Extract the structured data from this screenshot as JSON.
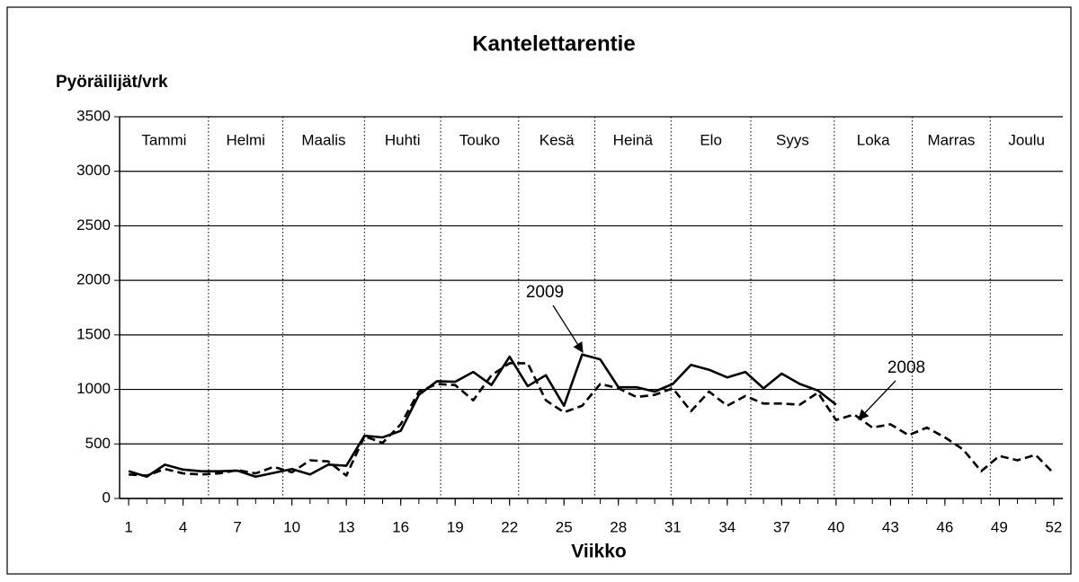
{
  "chart_data": {
    "type": "line",
    "title": "Kantelettarentie",
    "y_label": "Pyöräilijät/vrk",
    "x_label": "Viikko",
    "xlim": [
      0.5,
      52.5
    ],
    "xticks": [
      1,
      4,
      7,
      10,
      13,
      16,
      19,
      22,
      25,
      28,
      31,
      34,
      37,
      40,
      43,
      46,
      49,
      52
    ],
    "ylim": [
      0,
      3500
    ],
    "yticks": [
      0,
      500,
      1000,
      1500,
      2000,
      2500,
      3000,
      3500
    ],
    "grid": true,
    "months": [
      "Tammi",
      "Helmi",
      "Maalis",
      "Huhti",
      "Touko",
      "Kesä",
      "Heinä",
      "Elo",
      "Syys",
      "Loka",
      "Marras",
      "Joulu"
    ],
    "month_boundaries": [
      5.4,
      9.5,
      14,
      18.2,
      22.5,
      26.7,
      30.9,
      35.3,
      39.9,
      44.2,
      48.5
    ],
    "series": [
      {
        "name": "2009",
        "color": "#000000",
        "dash": false,
        "x": [
          1,
          2,
          3,
          4,
          5,
          6,
          7,
          8,
          9,
          10,
          11,
          12,
          13,
          14,
          15,
          16,
          17,
          18,
          19,
          20,
          21,
          22,
          23,
          24,
          25,
          26,
          27,
          28,
          29,
          30,
          31,
          32,
          33,
          34,
          35,
          36,
          37,
          38,
          39,
          40
        ],
        "values": [
          250,
          200,
          310,
          265,
          250,
          250,
          255,
          200,
          235,
          270,
          220,
          310,
          300,
          575,
          560,
          620,
          950,
          1075,
          1070,
          1160,
          1040,
          1300,
          1030,
          1130,
          850,
          1320,
          1275,
          1020,
          1020,
          980,
          1050,
          1225,
          1180,
          1110,
          1160,
          1010,
          1145,
          1050,
          990,
          860
        ]
      },
      {
        "name": "2008",
        "color": "#000000",
        "dash": true,
        "x": [
          1,
          2,
          3,
          4,
          5,
          6,
          7,
          8,
          9,
          10,
          11,
          12,
          13,
          14,
          15,
          16,
          17,
          18,
          19,
          20,
          21,
          22,
          23,
          24,
          25,
          26,
          27,
          28,
          29,
          30,
          31,
          32,
          33,
          34,
          35,
          36,
          37,
          38,
          39,
          40,
          41,
          42,
          43,
          44,
          45,
          46,
          47,
          48,
          49,
          50,
          51,
          52
        ],
        "values": [
          220,
          210,
          270,
          230,
          220,
          230,
          260,
          230,
          290,
          240,
          350,
          340,
          210,
          570,
          510,
          680,
          980,
          1050,
          1040,
          900,
          1130,
          1240,
          1240,
          900,
          790,
          850,
          1050,
          1010,
          930,
          950,
          1010,
          800,
          980,
          850,
          940,
          870,
          870,
          860,
          970,
          720,
          770,
          650,
          680,
          580,
          650,
          560,
          450,
          250,
          390,
          350,
          400,
          230
        ]
      }
    ]
  }
}
